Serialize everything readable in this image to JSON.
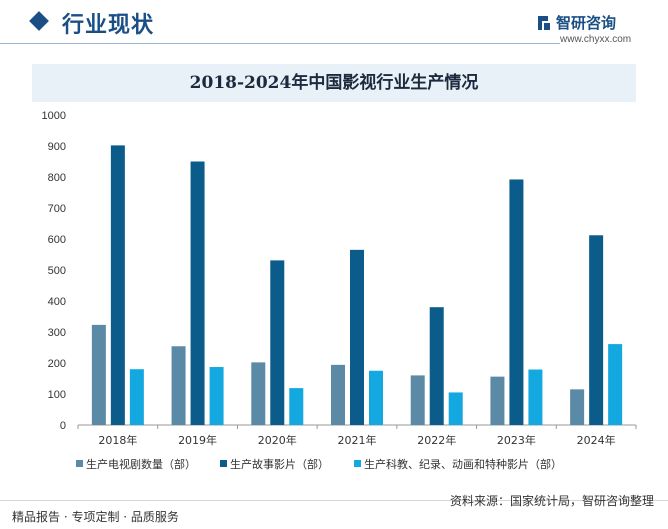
{
  "header": {
    "section_title": "行业现状",
    "brand_name": "智研咨询",
    "brand_url": "www.chyxx.com"
  },
  "chart_data": {
    "type": "bar",
    "title": "2018-2024年中国影视行业生产情况",
    "categories": [
      "2018年",
      "2019年",
      "2020年",
      "2021年",
      "2022年",
      "2023年",
      "2024年"
    ],
    "series": [
      {
        "name": "生产电视剧数量（部）",
        "color": "#5b8aa6",
        "values": [
          323,
          254,
          202,
          194,
          160,
          156,
          115
        ]
      },
      {
        "name": "生产故事影片（部）",
        "color": "#0b5c8a",
        "values": [
          902,
          850,
          531,
          565,
          380,
          792,
          612
        ]
      },
      {
        "name": "生产科教、纪录、动画和特种影片（部）",
        "color": "#14a8e0",
        "values": [
          180,
          187,
          119,
          175,
          105,
          179,
          261
        ]
      }
    ],
    "yticks": [
      "0",
      "100",
      "200",
      "300",
      "400",
      "500",
      "600",
      "700",
      "800",
      "900",
      "1000"
    ],
    "ylim": [
      0,
      1000
    ],
    "grid": false,
    "legend_position": "bottom"
  },
  "footer": {
    "left": "精品报告 · 专项定制 · 品质服务",
    "right": "资料来源：国家统计局，智研咨询整理"
  }
}
